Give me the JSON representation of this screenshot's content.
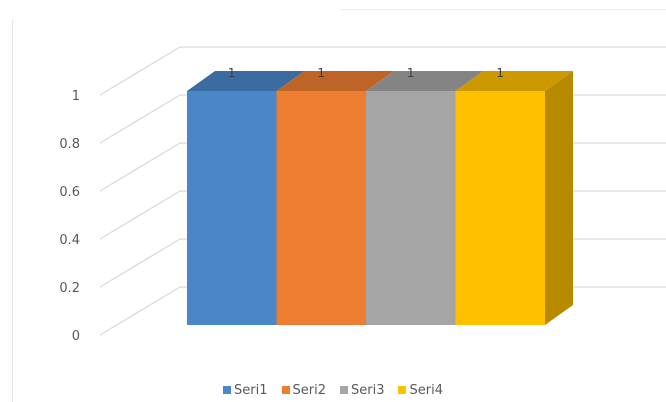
{
  "chart_data": {
    "type": "bar",
    "categories": [
      ""
    ],
    "series": [
      {
        "name": "Seri1",
        "values": [
          1
        ],
        "color": "#4a86c8"
      },
      {
        "name": "Seri2",
        "values": [
          1
        ],
        "color": "#ed7d31"
      },
      {
        "name": "Seri3",
        "values": [
          1
        ],
        "color": "#a5a5a5"
      },
      {
        "name": "Seri4",
        "values": [
          1
        ],
        "color": "#ffc000"
      }
    ],
    "data_labels": [
      "1",
      "1",
      "1",
      "1"
    ],
    "yticks": [
      "0",
      "0.2",
      "0.4",
      "0.6",
      "0.8",
      "1"
    ],
    "ylim": [
      0,
      1
    ],
    "title": "",
    "xlabel": "",
    "ylabel": "",
    "grid": true,
    "legend_position": "bottom",
    "style": "3d-clustered-column"
  }
}
